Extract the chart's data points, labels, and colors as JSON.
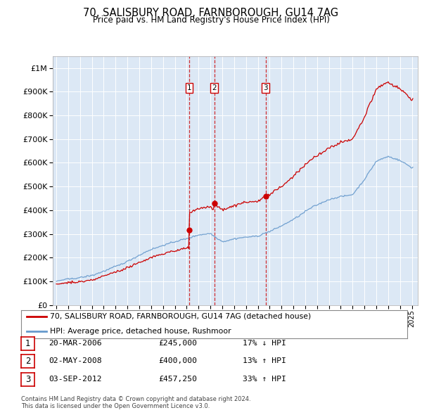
{
  "title": "70, SALISBURY ROAD, FARNBOROUGH, GU14 7AG",
  "subtitle": "Price paid vs. HM Land Registry's House Price Index (HPI)",
  "transactions": [
    {
      "label": "1",
      "date": "20-MAR-2006",
      "price": 245000,
      "hpi_diff": "17% ↓ HPI",
      "year": 2006.21
    },
    {
      "label": "2",
      "date": "02-MAY-2008",
      "price": 400000,
      "hpi_diff": "13% ↑ HPI",
      "year": 2008.33
    },
    {
      "label": "3",
      "date": "03-SEP-2012",
      "price": 457250,
      "hpi_diff": "33% ↑ HPI",
      "year": 2012.67
    }
  ],
  "legend_line1": "70, SALISBURY ROAD, FARNBOROUGH, GU14 7AG (detached house)",
  "legend_line2": "HPI: Average price, detached house, Rushmoor",
  "footer1": "Contains HM Land Registry data © Crown copyright and database right 2024.",
  "footer2": "This data is licensed under the Open Government Licence v3.0.",
  "ylim": [
    0,
    1050000
  ],
  "xlim": [
    1994.7,
    2025.5
  ],
  "red_color": "#cc0000",
  "blue_color": "#6699cc",
  "plot_bg_color": "#dce8f5"
}
